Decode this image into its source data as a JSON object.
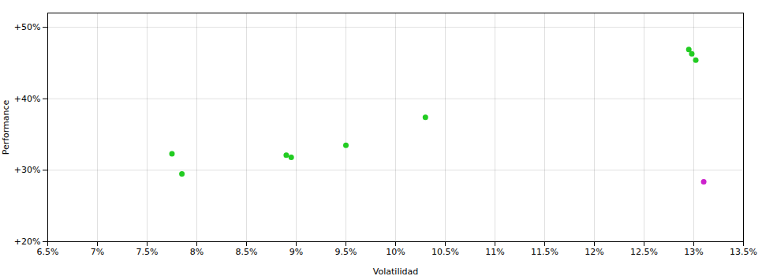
{
  "chart_data": {
    "type": "scatter",
    "xlabel": "Volatilidad",
    "ylabel": "Performance",
    "xlim": [
      0.065,
      0.135
    ],
    "ylim": [
      0.2,
      0.52
    ],
    "xticks": [
      {
        "value": 0.065,
        "label": "6.5%"
      },
      {
        "value": 0.07,
        "label": "7%"
      },
      {
        "value": 0.075,
        "label": "7.5%"
      },
      {
        "value": 0.08,
        "label": "8%"
      },
      {
        "value": 0.085,
        "label": "8.5%"
      },
      {
        "value": 0.09,
        "label": "9%"
      },
      {
        "value": 0.095,
        "label": "9.5%"
      },
      {
        "value": 0.1,
        "label": "10%"
      },
      {
        "value": 0.105,
        "label": "10.5%"
      },
      {
        "value": 0.11,
        "label": "11%"
      },
      {
        "value": 0.115,
        "label": "11.5%"
      },
      {
        "value": 0.12,
        "label": "12%"
      },
      {
        "value": 0.125,
        "label": "12.5%"
      },
      {
        "value": 0.13,
        "label": "13%"
      },
      {
        "value": 0.135,
        "label": "13.5%"
      }
    ],
    "yticks": [
      {
        "value": 0.2,
        "label": "+20%"
      },
      {
        "value": 0.3,
        "label": "+30%"
      },
      {
        "value": 0.4,
        "label": "+40%"
      },
      {
        "value": 0.5,
        "label": "+50%"
      }
    ],
    "grid": true,
    "series": [
      {
        "color": "#22cc22",
        "x": [
          0.0775,
          0.0785,
          0.089,
          0.0895,
          0.095,
          0.103,
          0.1295,
          0.1298,
          0.1302
        ],
        "values": [
          0.323,
          0.295,
          0.321,
          0.318,
          0.335,
          0.374,
          0.469,
          0.463,
          0.454
        ]
      },
      {
        "color": "#cc22cc",
        "x": [
          0.131
        ],
        "values": [
          0.284
        ]
      }
    ]
  }
}
